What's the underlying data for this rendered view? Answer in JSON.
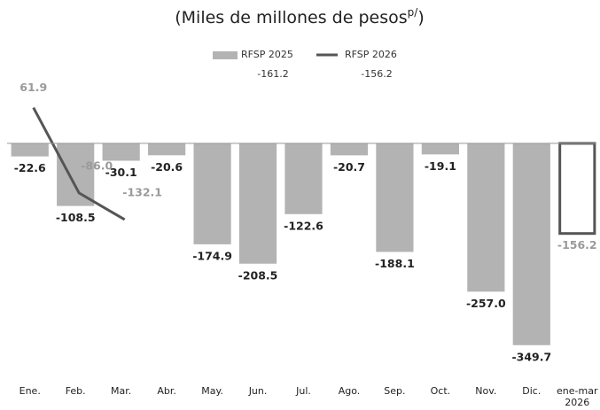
{
  "chart_data": {
    "type": "bar",
    "title": "(Miles de millones de pesos",
    "title_superscript": "p/",
    "title_close": ")",
    "categories": [
      "Ene.",
      "Feb.",
      "Mar.",
      "Abr.",
      "May.",
      "Jun.",
      "Jul.",
      "Ago.",
      "Sep.",
      "Oct.",
      "Nov.",
      "Dic.",
      "ene-mar 2026"
    ],
    "series": [
      {
        "name": "RFSP 2025",
        "type": "bar",
        "color": "#b3b3b3",
        "values": [
          -22.6,
          -108.5,
          -30.1,
          -20.6,
          -174.9,
          -208.5,
          -122.6,
          -20.7,
          -188.1,
          -19.1,
          -257.0,
          -349.7,
          null
        ],
        "value_labels": [
          "-22.6",
          "-108.5",
          "-30.1",
          "-20.6",
          "-174.9",
          "-208.5",
          "-122.6",
          "-20.7",
          "-188.1",
          "-19.1",
          "-257.0",
          "-349.7",
          null
        ],
        "label_color": "#222222"
      },
      {
        "type": "bar",
        "color": "#555555",
        "fill": "#ffffff",
        "values": [
          null,
          null,
          null,
          null,
          null,
          null,
          null,
          null,
          null,
          null,
          null,
          null,
          -156.2
        ],
        "value_labels": [
          null,
          null,
          null,
          null,
          null,
          null,
          null,
          null,
          null,
          null,
          null,
          null,
          "-156.2"
        ],
        "label_color": "#9a9a9a"
      },
      {
        "name": "RFSP 2026",
        "type": "line",
        "color": "#555555",
        "values": [
          61.9,
          -86.0,
          -132.1,
          null,
          null,
          null,
          null,
          null,
          null,
          null,
          null,
          null,
          null
        ],
        "value_labels": [
          "61.9",
          "-86.0",
          "-132.1",
          null,
          null,
          null,
          null,
          null,
          null,
          null,
          null,
          null,
          null
        ],
        "label_color": "#9a9a9a"
      }
    ],
    "legend_notes": [
      "-161.2",
      "-156.2"
    ],
    "ylim": [
      -370,
      95
    ]
  }
}
